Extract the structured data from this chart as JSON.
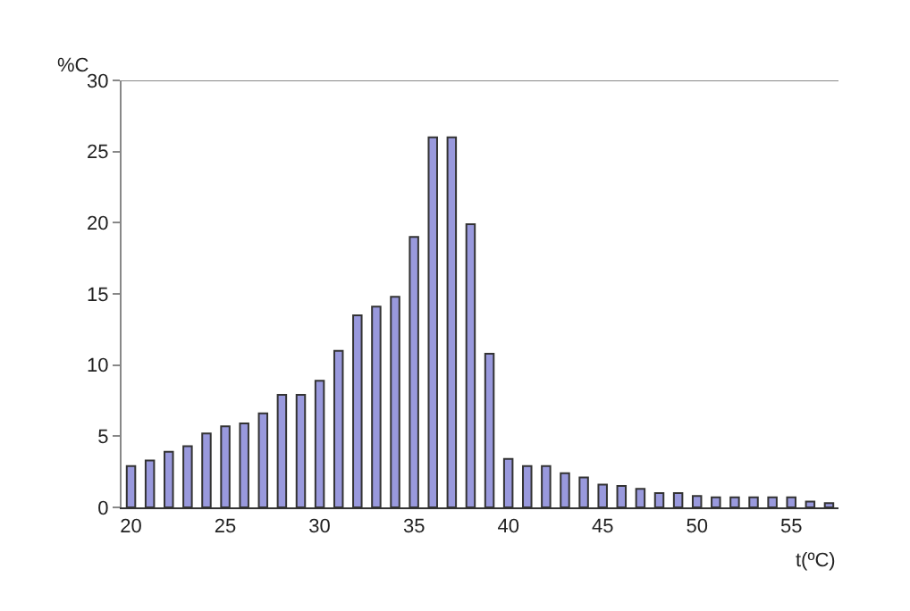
{
  "chart_data": {
    "type": "bar",
    "xlabel": "t(ºC)",
    "ylabel": "%C",
    "x": [
      20,
      21,
      22,
      23,
      24,
      25,
      26,
      27,
      28,
      29,
      30,
      31,
      32,
      33,
      34,
      35,
      36,
      37,
      38,
      39,
      40,
      41,
      42,
      43,
      44,
      45,
      46,
      47,
      48,
      49,
      50,
      51,
      52,
      53,
      54,
      55,
      56,
      57
    ],
    "values": [
      2.9,
      3.3,
      3.9,
      4.3,
      5.2,
      5.7,
      5.9,
      6.6,
      7.9,
      7.9,
      8.9,
      11,
      13.5,
      14.1,
      14.8,
      19,
      26,
      26,
      19.9,
      10.8,
      3.4,
      2.9,
      2.9,
      2.4,
      2.1,
      1.6,
      1.5,
      1.3,
      1.0,
      1.0,
      0.8,
      0.7,
      0.7,
      0.7,
      0.7,
      0.7,
      0.4,
      0.3
    ],
    "color": "#9999dd",
    "xlim": [
      19.5,
      57.5
    ],
    "xticks": [
      20,
      25,
      30,
      35,
      40,
      45,
      50,
      55
    ],
    "ylim": [
      0,
      30
    ],
    "yticks": [
      0,
      5,
      10,
      15,
      20,
      25,
      30
    ],
    "legend": false
  }
}
